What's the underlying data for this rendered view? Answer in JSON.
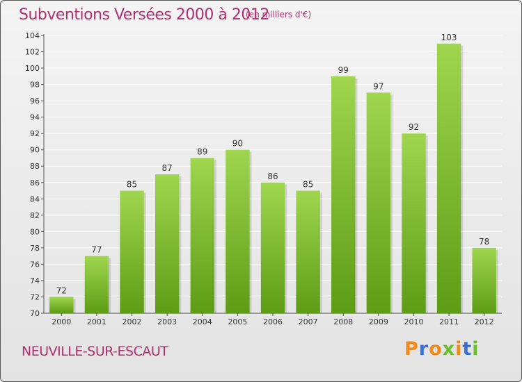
{
  "header": {
    "title": "Subventions Versées 2000 à 2012",
    "subtitle": "(en milliers d'€)"
  },
  "footer": {
    "commune": "NEUVILLE-SUR-ESCAUT",
    "logo": {
      "text": "Proxiti",
      "letter_colors": [
        "#f08a1c",
        "#3b6fd1",
        "#f08a1c",
        "#6cbf2a",
        "#f08a1c",
        "#3b6fd1",
        "#6cbf2a"
      ]
    }
  },
  "colors": {
    "accent": "#b0306e",
    "bar_top": "#9fd64e",
    "bar_bottom": "#5e9c16",
    "grid": "#ffffff",
    "axis_text": "#333333"
  },
  "chart_data": {
    "type": "bar",
    "title": "Subventions Versées 2000 à 2012",
    "subtitle": "(en milliers d'€)",
    "categories": [
      "2000",
      "2001",
      "2002",
      "2003",
      "2004",
      "2005",
      "2006",
      "2007",
      "2008",
      "2009",
      "2010",
      "2011",
      "2012"
    ],
    "values": [
      72,
      77,
      85,
      87,
      89,
      90,
      86,
      85,
      99,
      97,
      92,
      103,
      78
    ],
    "data_labels": [
      "72",
      "77",
      "85",
      "87",
      "89",
      "90",
      "86",
      "85",
      "99",
      "97",
      "92",
      "103",
      "78"
    ],
    "ylim": [
      70,
      104
    ],
    "yticks": [
      70,
      72,
      74,
      76,
      78,
      80,
      82,
      84,
      86,
      88,
      90,
      92,
      94,
      96,
      98,
      100,
      102,
      104
    ],
    "xlabel": "",
    "ylabel": "",
    "grid": true,
    "legend": "none"
  }
}
